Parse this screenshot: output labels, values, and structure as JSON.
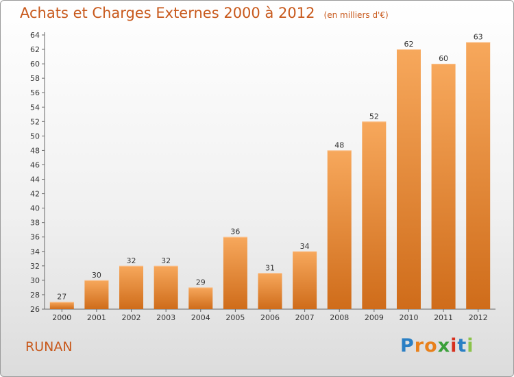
{
  "header": {
    "title": "Achats et Charges Externes 2000 à 2012",
    "unit": "(en milliers d'€)"
  },
  "commune": "RUNAN",
  "logo": {
    "letters": [
      "P",
      "r",
      "o",
      "x",
      "i",
      "t",
      "i"
    ],
    "colors": [
      "#2a7fc4",
      "#e8801b",
      "#e8801b",
      "#3aa03a",
      "#d7301e",
      "#2a7fc4",
      "#8bc34a"
    ]
  },
  "colors": {
    "bar": "#f0923a",
    "bar_light": "#f7a85c",
    "bar_dark": "#cf6c1a",
    "accent": "#c8591c"
  },
  "chart_data": {
    "type": "bar",
    "categories": [
      "2000",
      "2001",
      "2002",
      "2003",
      "2004",
      "2005",
      "2006",
      "2007",
      "2008",
      "2009",
      "2010",
      "2011",
      "2012"
    ],
    "values": [
      27,
      30,
      32,
      32,
      29,
      36,
      31,
      34,
      48,
      52,
      62,
      60,
      63
    ],
    "yticks": [
      "26",
      "28",
      "30",
      "32",
      "34",
      "36",
      "38",
      "40",
      "42",
      "44",
      "46",
      "48",
      "50",
      "52",
      "54",
      "56",
      "58",
      "60",
      "62",
      "64"
    ],
    "ylim": [
      26,
      64
    ],
    "grid": false,
    "legend": "none"
  }
}
